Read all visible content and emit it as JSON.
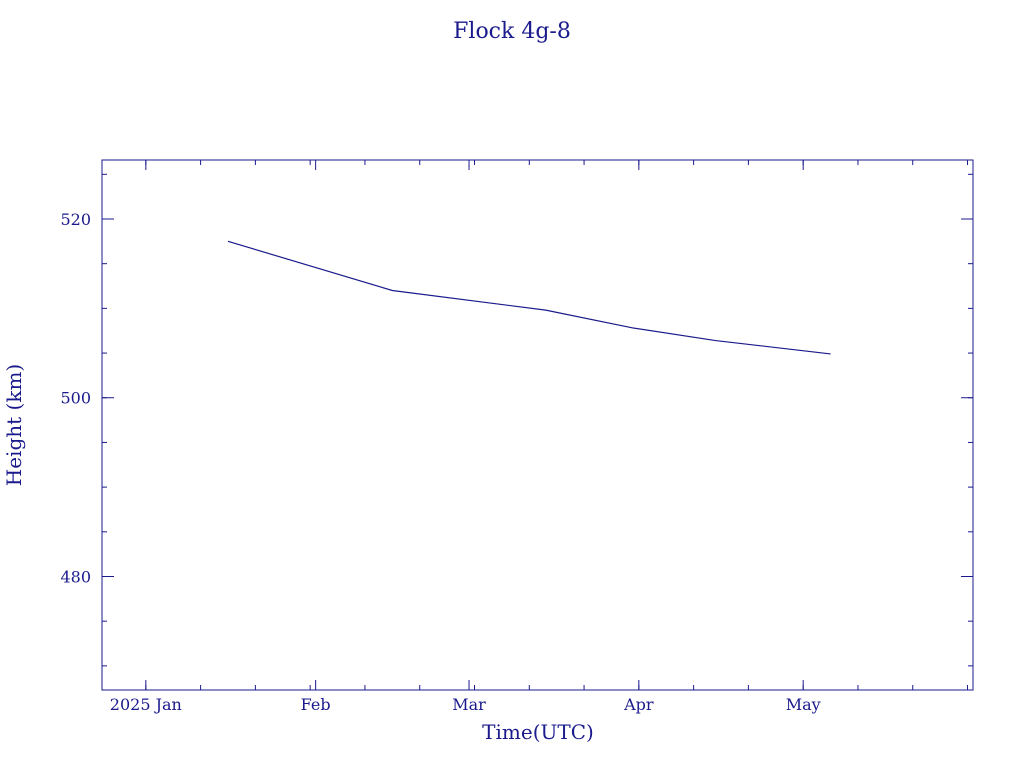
{
  "chart_data": {
    "type": "line",
    "title": "Flock 4g-8",
    "xlabel": "Time(UTC)",
    "ylabel": "Height (km)",
    "color": "#1a1a8c",
    "grid": false,
    "xlim": [
      "2024-12-24",
      "2025-06-01"
    ],
    "ylim": [
      467.3,
      526.6
    ],
    "x_ticks": [
      {
        "date": "2025-01-01",
        "label": "2025 Jan"
      },
      {
        "date": "2025-02-01",
        "label": "Feb"
      },
      {
        "date": "2025-03-01",
        "label": "Mar"
      },
      {
        "date": "2025-04-01",
        "label": "Apr"
      },
      {
        "date": "2025-05-01",
        "label": "May"
      }
    ],
    "y_ticks": [
      480,
      500,
      520
    ],
    "y_minor_step": 5,
    "x_minor_step_days": 10,
    "series": [
      {
        "x": [
          "2025-01-16",
          "2025-02-15",
          "2025-03-15",
          "2025-03-31",
          "2025-04-15",
          "2025-05-06"
        ],
        "y": [
          517.5,
          512.0,
          509.8,
          507.8,
          506.4,
          504.9
        ]
      }
    ]
  }
}
